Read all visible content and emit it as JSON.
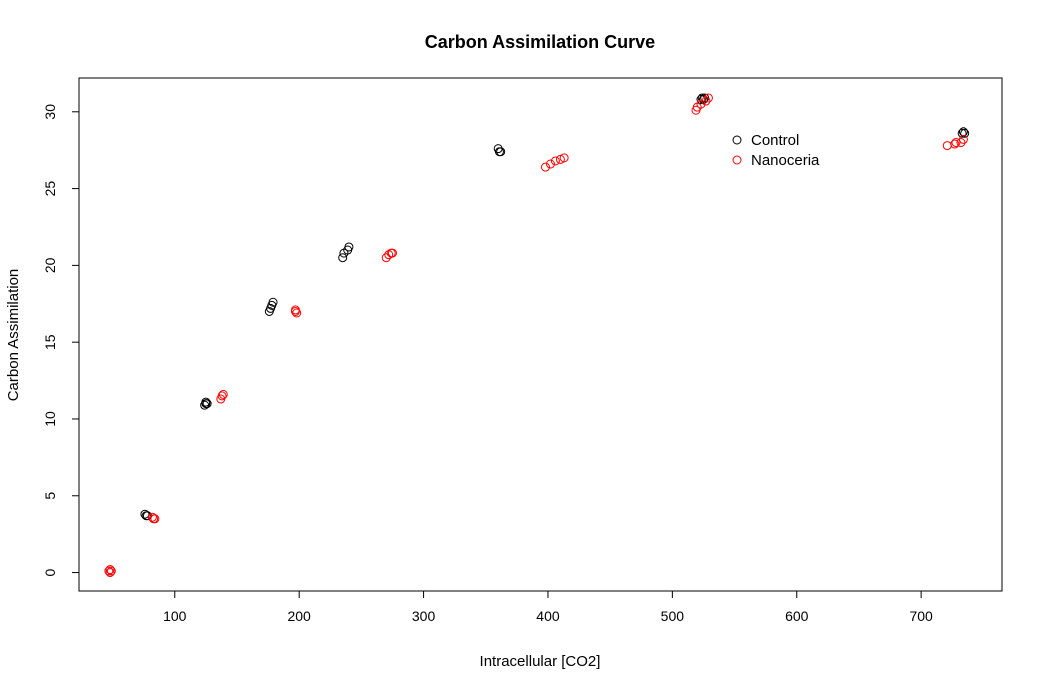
{
  "chart_data": {
    "type": "scatter",
    "title": "Carbon Assimilation Curve",
    "xlabel": "Intracellular [CO2]",
    "ylabel": "Carbon Assimilation",
    "xlim": [
      23,
      765
    ],
    "ylim": [
      -1.2,
      32.2
    ],
    "x_ticks": [
      100,
      200,
      300,
      400,
      500,
      600,
      700
    ],
    "y_ticks": [
      0,
      5,
      10,
      15,
      20,
      25,
      30
    ],
    "grid": false,
    "legend_position": "top-right",
    "marker": "open-circle",
    "series": [
      {
        "name": "Control",
        "color": "#000000",
        "points": [
          {
            "x": 76,
            "y": 3.8
          },
          {
            "x": 77,
            "y": 3.7
          },
          {
            "x": 78,
            "y": 3.7
          },
          {
            "x": 124,
            "y": 10.9
          },
          {
            "x": 125,
            "y": 11.0
          },
          {
            "x": 125,
            "y": 11.1
          },
          {
            "x": 126,
            "y": 11.0
          },
          {
            "x": 176,
            "y": 17.0
          },
          {
            "x": 177,
            "y": 17.2
          },
          {
            "x": 178,
            "y": 17.4
          },
          {
            "x": 179,
            "y": 17.6
          },
          {
            "x": 235,
            "y": 20.5
          },
          {
            "x": 236,
            "y": 20.8
          },
          {
            "x": 239,
            "y": 21.0
          },
          {
            "x": 240,
            "y": 21.2
          },
          {
            "x": 360,
            "y": 27.6
          },
          {
            "x": 361,
            "y": 27.4
          },
          {
            "x": 362,
            "y": 27.4
          },
          {
            "x": 523,
            "y": 30.8
          },
          {
            "x": 524,
            "y": 30.9
          },
          {
            "x": 525,
            "y": 30.8
          },
          {
            "x": 526,
            "y": 30.9
          },
          {
            "x": 733,
            "y": 28.6
          },
          {
            "x": 734,
            "y": 28.7
          },
          {
            "x": 735,
            "y": 28.6
          }
        ]
      },
      {
        "name": "Nanoceria",
        "color": "#ff0000",
        "points": [
          {
            "x": 47,
            "y": 0.1
          },
          {
            "x": 48,
            "y": 0.2
          },
          {
            "x": 48,
            "y": 0.0
          },
          {
            "x": 49,
            "y": 0.1
          },
          {
            "x": 82,
            "y": 3.6
          },
          {
            "x": 83,
            "y": 3.5
          },
          {
            "x": 84,
            "y": 3.5
          },
          {
            "x": 137,
            "y": 11.3
          },
          {
            "x": 138,
            "y": 11.5
          },
          {
            "x": 139,
            "y": 11.6
          },
          {
            "x": 197,
            "y": 17.0
          },
          {
            "x": 197,
            "y": 17.1
          },
          {
            "x": 198,
            "y": 16.9
          },
          {
            "x": 270,
            "y": 20.5
          },
          {
            "x": 272,
            "y": 20.7
          },
          {
            "x": 274,
            "y": 20.8
          },
          {
            "x": 275,
            "y": 20.8
          },
          {
            "x": 398,
            "y": 26.4
          },
          {
            "x": 402,
            "y": 26.6
          },
          {
            "x": 406,
            "y": 26.8
          },
          {
            "x": 410,
            "y": 26.9
          },
          {
            "x": 413,
            "y": 27.0
          },
          {
            "x": 519,
            "y": 30.1
          },
          {
            "x": 520,
            "y": 30.3
          },
          {
            "x": 523,
            "y": 30.5
          },
          {
            "x": 527,
            "y": 30.7
          },
          {
            "x": 529,
            "y": 30.9
          },
          {
            "x": 721,
            "y": 27.8
          },
          {
            "x": 727,
            "y": 27.9
          },
          {
            "x": 728,
            "y": 28.0
          },
          {
            "x": 732,
            "y": 28.0
          },
          {
            "x": 734,
            "y": 28.2
          }
        ]
      }
    ]
  }
}
